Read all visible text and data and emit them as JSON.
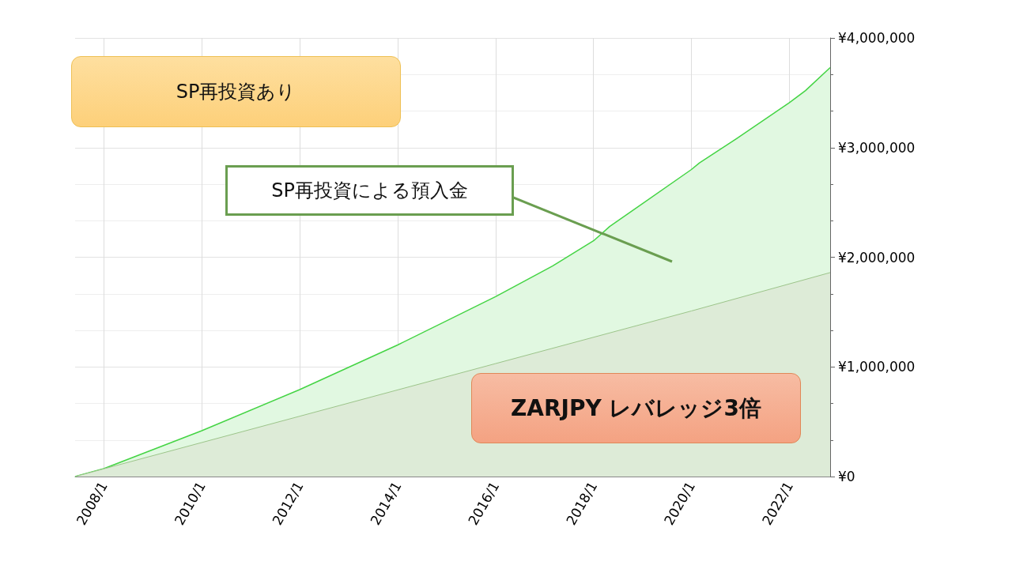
{
  "chart_data": {
    "type": "area",
    "x": [
      "2007-06",
      "2008-01",
      "2010-01",
      "2012-01",
      "2014-01",
      "2016-01",
      "2017-03",
      "2018-01",
      "2018-05",
      "2020-01",
      "2020-03",
      "2020-12",
      "2022-01",
      "2022-05",
      "2022-11"
    ],
    "series": [
      {
        "color": "#44d444",
        "values": [
          0,
          72000,
          418000,
          793000,
          1200000,
          1640000,
          1920000,
          2150000,
          2280000,
          2800000,
          2860000,
          3080000,
          3410000,
          3520000,
          3730000
        ]
      },
      {
        "color": "#9cc48a",
        "x": [
          "2007-06",
          "2012-01",
          "2016-01",
          "2020-01",
          "2022-11"
        ],
        "values": [
          0,
          550000,
          1030000,
          1510000,
          1860000
        ]
      }
    ],
    "xlim": [
      "2007-06",
      "2022-11"
    ],
    "xticks": [
      {
        "value": "2008-01",
        "label": "2008/1"
      },
      {
        "value": "2010-01",
        "label": "2010/1"
      },
      {
        "value": "2012-01",
        "label": "2012/1"
      },
      {
        "value": "2014-01",
        "label": "2014/1"
      },
      {
        "value": "2016-01",
        "label": "2016/1"
      },
      {
        "value": "2018-01",
        "label": "2018/1"
      },
      {
        "value": "2020-01",
        "label": "2020/1"
      },
      {
        "value": "2022-01",
        "label": "2022/1"
      }
    ],
    "ylim": [
      0,
      4000000
    ],
    "yticks": [
      {
        "value": 0,
        "label": "¥0"
      },
      {
        "value": 1000000,
        "label": "¥1,000,000"
      },
      {
        "value": 2000000,
        "label": "¥2,000,000"
      },
      {
        "value": 3000000,
        "label": "¥3,000,000"
      },
      {
        "value": 4000000,
        "label": "¥4,000,000"
      }
    ],
    "grid": true,
    "annotations": [
      "SP再投資あり",
      "SP再投資による預入金",
      "ZARJPY レバレッジ3倍"
    ]
  }
}
